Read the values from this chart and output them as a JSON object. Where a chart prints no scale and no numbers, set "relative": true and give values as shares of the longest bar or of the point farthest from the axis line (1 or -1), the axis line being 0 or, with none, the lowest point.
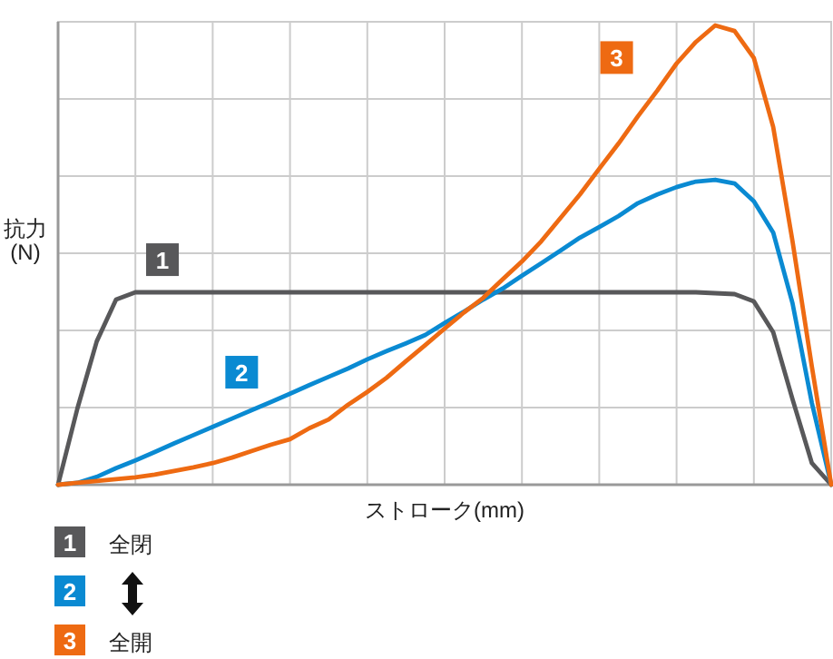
{
  "chart_data": {
    "type": "line",
    "relative": true,
    "xlabel": "ストローク(mm)",
    "ylabel": "抗力\n(N)",
    "grid": true,
    "legend": "bottom",
    "line_style": "solid",
    "marker": "none",
    "categories": [
      null,
      null,
      null,
      null,
      null,
      null,
      null,
      null,
      null,
      null,
      null,
      null,
      null,
      null,
      null,
      null,
      null,
      null,
      null,
      null,
      null,
      null,
      null,
      null,
      null,
      null,
      null,
      null,
      null,
      null,
      null,
      null,
      null,
      null,
      null,
      null,
      null,
      null,
      null,
      null,
      null
    ],
    "series": [
      {
        "name": "1",
        "color": "#58585a",
        "values": [
          0,
          0.166,
          0.312,
          0.403,
          0.419,
          0.419,
          0.419,
          0.419,
          0.419,
          0.419,
          0.419,
          0.419,
          0.419,
          0.419,
          0.419,
          0.419,
          0.419,
          0.419,
          0.419,
          0.419,
          0.419,
          0.419,
          0.419,
          0.419,
          0.419,
          0.419,
          0.419,
          0.419,
          0.419,
          0.419,
          0.419,
          0.419,
          0.419,
          0.419,
          0.417,
          0.415,
          0.399,
          0.332,
          0.186,
          0.047,
          0
        ]
      },
      {
        "name": "2",
        "color": "#0a8ad2",
        "values": [
          0,
          0.004,
          0.017,
          0.036,
          0.053,
          0.071,
          0.09,
          0.108,
          0.126,
          0.144,
          0.162,
          0.18,
          0.198,
          0.217,
          0.235,
          0.253,
          0.273,
          0.291,
          0.308,
          0.326,
          0.352,
          0.377,
          0.403,
          0.427,
          0.455,
          0.482,
          0.51,
          0.538,
          0.561,
          0.585,
          0.613,
          0.632,
          0.648,
          0.66,
          0.664,
          0.656,
          0.617,
          0.549,
          0.395,
          0.178,
          0
        ]
      },
      {
        "name": "3",
        "color": "#ee6a12",
        "values": [
          0,
          0.004,
          0.008,
          0.012,
          0.016,
          0.022,
          0.03,
          0.038,
          0.047,
          0.059,
          0.073,
          0.087,
          0.099,
          0.123,
          0.142,
          0.174,
          0.202,
          0.233,
          0.269,
          0.304,
          0.34,
          0.375,
          0.407,
          0.447,
          0.486,
          0.53,
          0.581,
          0.632,
          0.688,
          0.743,
          0.802,
          0.858,
          0.917,
          0.964,
          1,
          0.988,
          0.929,
          0.779,
          0.53,
          0.257,
          0
        ]
      }
    ],
    "annotations": [
      "全閉",
      "全開"
    ]
  }
}
